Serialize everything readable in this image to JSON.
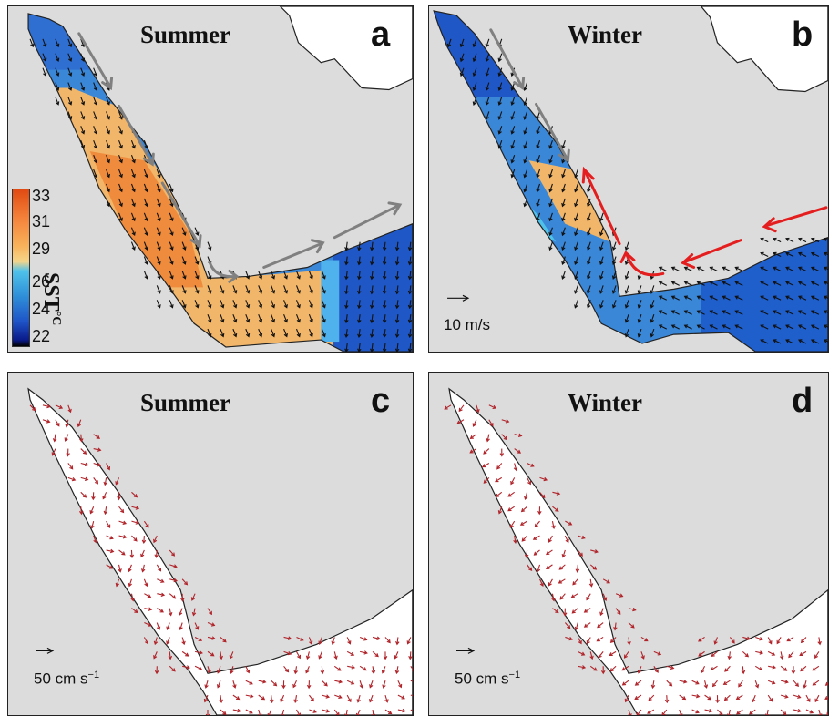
{
  "panels": [
    {
      "id": "a",
      "season": "Summer",
      "letter": "a"
    },
    {
      "id": "b",
      "season": "Winter",
      "letter": "b"
    },
    {
      "id": "c",
      "season": "Summer",
      "letter": "c"
    },
    {
      "id": "d",
      "season": "Winter",
      "letter": "d"
    }
  ],
  "colorbar": {
    "ticks": [
      "33",
      "31",
      "29",
      "26",
      "24",
      "22"
    ],
    "label": "SST",
    "unit": "°C"
  },
  "wind_scale": {
    "label": "10 m/s"
  },
  "current_scale": {
    "label": "50 cm s",
    "exponent": "−1"
  },
  "colors": {
    "land": "#dcdcdc",
    "sea_warm": "#f1b669",
    "sea_hot": "#ef8b3c",
    "sea_cool": "#3a87d8",
    "sea_cold": "#1f58c6",
    "wind_arrow": "#111111",
    "current_arrow": "#b0242a",
    "summer_flow_arrow": "#808080",
    "winter_inflow_arrow": "#e41e1e"
  }
}
